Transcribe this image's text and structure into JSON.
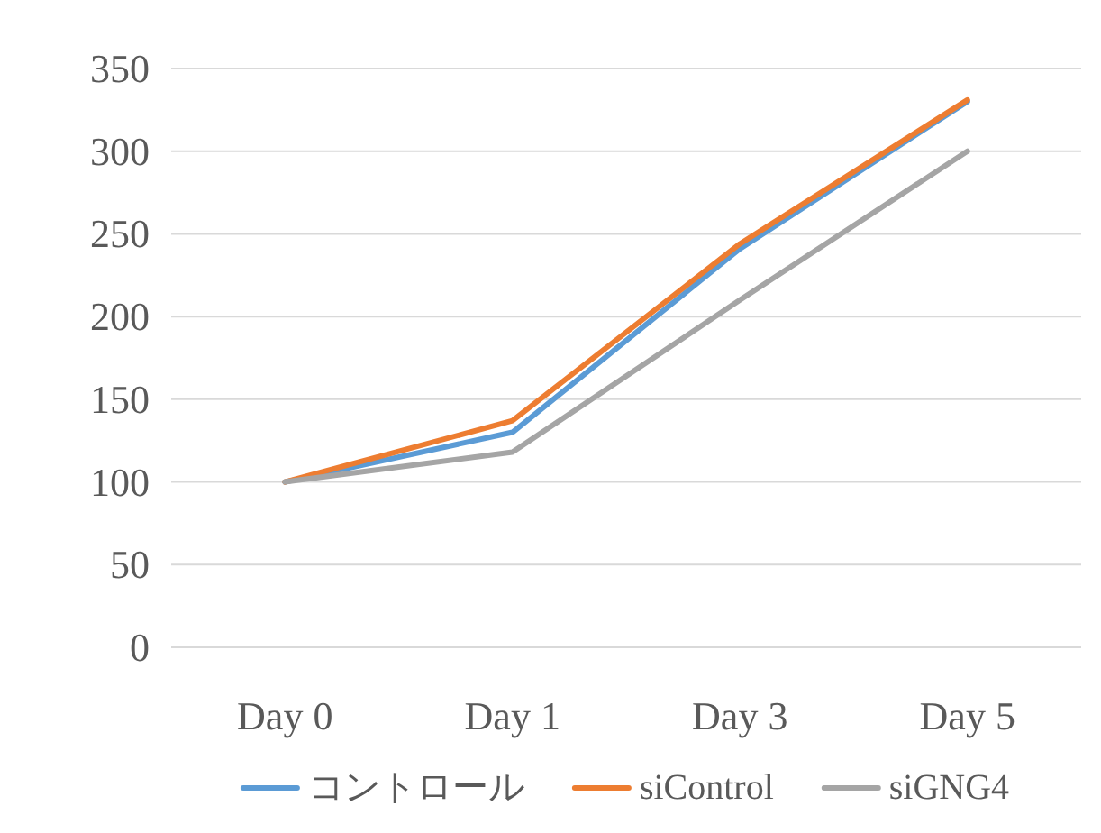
{
  "chart_data": {
    "type": "line",
    "categories": [
      "Day 0",
      "Day 1",
      "Day 3",
      "Day 5"
    ],
    "series": [
      {
        "name": "コントロール",
        "color": "#5b9bd5",
        "values": [
          100,
          130,
          241,
          330
        ]
      },
      {
        "name": "siControl",
        "color": "#ed7d31",
        "values": [
          100,
          137,
          244,
          331
        ]
      },
      {
        "name": "siGNG4",
        "color": "#a5a5a5",
        "values": [
          100,
          118,
          210,
          300
        ]
      }
    ],
    "ylim": [
      0,
      350
    ],
    "yticks": [
      0,
      50,
      100,
      150,
      200,
      250,
      300,
      350
    ],
    "grid": "y",
    "legend": "bottom",
    "marker": "none",
    "line_style": "solid"
  }
}
